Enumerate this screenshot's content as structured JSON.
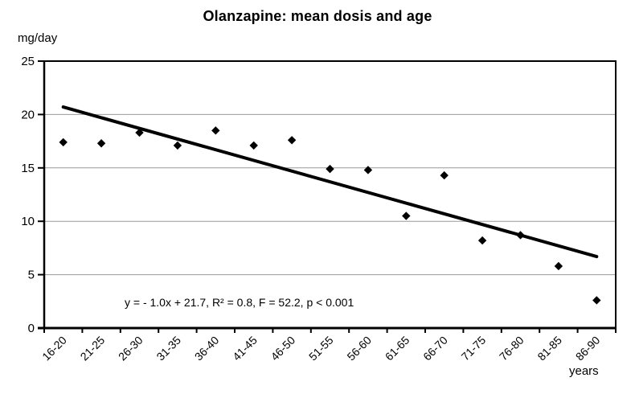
{
  "chart_data": {
    "type": "scatter",
    "title": "Olanzapine: mean dosis and age",
    "ylabel": "mg/day",
    "xlabel": "years",
    "categories": [
      "16-20",
      "21-25",
      "26-30",
      "31-35",
      "36-40",
      "41-45",
      "46-50",
      "51-55",
      "56-60",
      "61-65",
      "66-70",
      "71-75",
      "76-80",
      "81-85",
      "86-90"
    ],
    "values": [
      17.4,
      17.3,
      18.3,
      17.1,
      18.5,
      17.1,
      17.6,
      14.9,
      14.8,
      10.5,
      14.3,
      8.2,
      8.7,
      5.8,
      2.6
    ],
    "y_ticks": [
      0,
      5,
      10,
      15,
      20,
      25
    ],
    "ylim": [
      0,
      25
    ],
    "grid": "horizontal",
    "legend": "none",
    "marker": "diamond",
    "annotation": "y = - 1.0x + 21.7, R² = 0.8, F = 52.2, p < 0.001",
    "trendline": {
      "slope": -1.0,
      "intercept": 21.7,
      "x_domain": [
        1,
        15
      ]
    },
    "colors": {
      "background": "#ffffff",
      "text": "#000000",
      "axis": "#000000",
      "gridline": "#999999",
      "marker": "#000000",
      "trendline": "#000000"
    }
  }
}
